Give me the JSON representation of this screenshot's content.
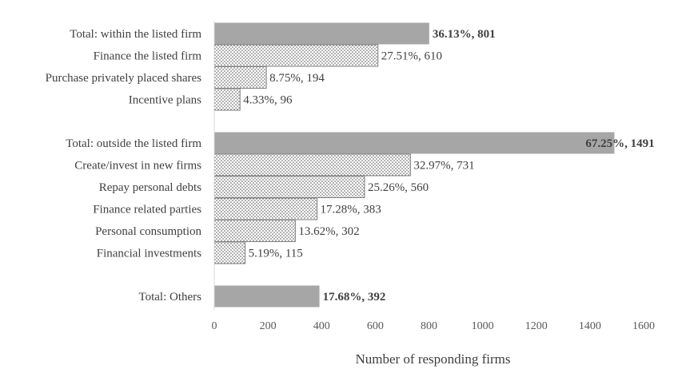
{
  "chart_data": {
    "type": "bar",
    "orientation": "horizontal",
    "xlabel": "Number of responding firms",
    "xlim": [
      0,
      1600
    ],
    "xticks": [
      0,
      200,
      400,
      600,
      800,
      1000,
      1200,
      1400,
      1600
    ],
    "grid": false,
    "colors": {
      "total_fill": "#a6a6a6",
      "pattern_dot": "#595959",
      "axis": "#d9d9d9",
      "text": "#404040"
    },
    "groups": [
      {
        "bars": [
          {
            "category": "Total: within the listed firm",
            "value": 801,
            "label": "36.13%, 801",
            "total": true
          },
          {
            "category": "Finance the listed firm",
            "value": 610,
            "label": "27.51%, 610",
            "total": false
          },
          {
            "category": "Purchase privately placed shares",
            "value": 194,
            "label": "8.75%, 194",
            "total": false
          },
          {
            "category": "Incentive plans",
            "value": 96,
            "label": "4.33%, 96",
            "total": false
          }
        ]
      },
      {
        "bars": [
          {
            "category": "Total: outside the listed firm",
            "value": 1491,
            "label": "67.25%, 1491",
            "total": true
          },
          {
            "category": "Create/invest in new firms",
            "value": 731,
            "label": "32.97%, 731",
            "total": false
          },
          {
            "category": "Repay personal debts",
            "value": 560,
            "label": "25.26%, 560",
            "total": false
          },
          {
            "category": "Finance related parties",
            "value": 383,
            "label": "17.28%, 383",
            "total": false
          },
          {
            "category": "Personal consumption",
            "value": 302,
            "label": "13.62%, 302",
            "total": false
          },
          {
            "category": "Financial investments",
            "value": 115,
            "label": "5.19%, 115",
            "total": false
          }
        ]
      },
      {
        "bars": [
          {
            "category": "Total: Others",
            "value": 392,
            "label": "17.68%, 392",
            "total": true
          }
        ]
      }
    ]
  }
}
